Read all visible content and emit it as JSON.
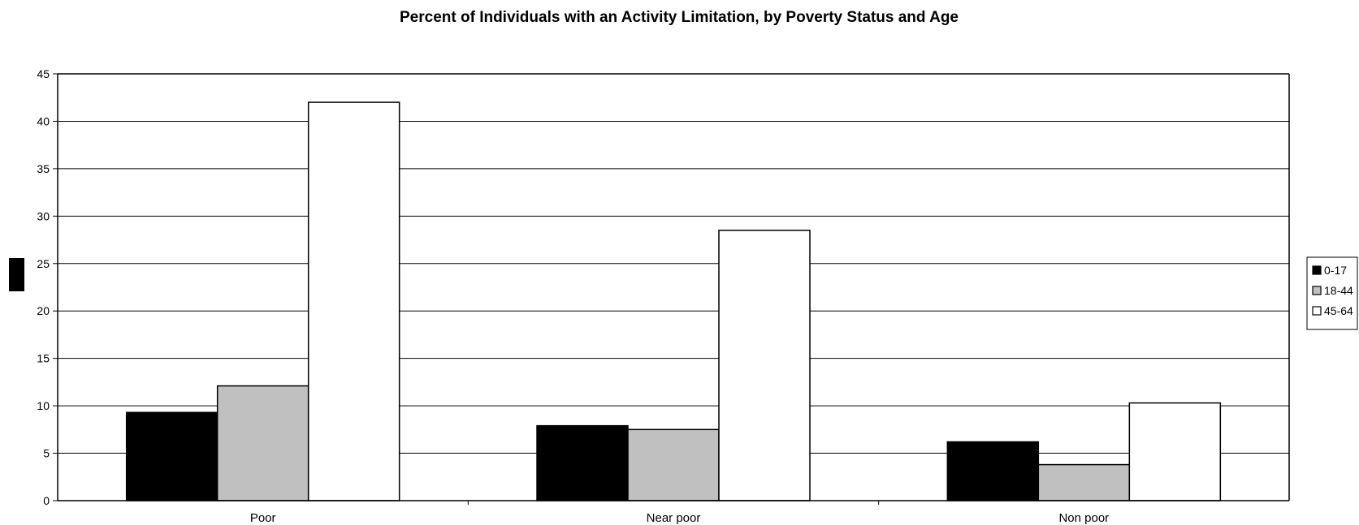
{
  "chart_data": {
    "type": "bar",
    "title": "Percent of Individuals with an Activity Limitation, by Poverty Status and Age",
    "xlabel": "",
    "ylabel": "",
    "categories": [
      "Poor",
      "Near poor",
      "Non poor"
    ],
    "series": [
      {
        "name": "0-17",
        "values": [
          9.3,
          7.9,
          6.2
        ],
        "color": "#000000"
      },
      {
        "name": "18-44",
        "values": [
          12.1,
          7.5,
          3.8
        ],
        "color": "#c0c0c0"
      },
      {
        "name": "45-64",
        "values": [
          42.0,
          28.5,
          10.3
        ],
        "color": "#ffffff"
      }
    ],
    "ylim": [
      0,
      45
    ],
    "yticks": [
      0,
      5,
      10,
      15,
      20,
      25,
      30,
      35,
      40,
      45
    ],
    "grid": true,
    "legend_position": "right"
  }
}
